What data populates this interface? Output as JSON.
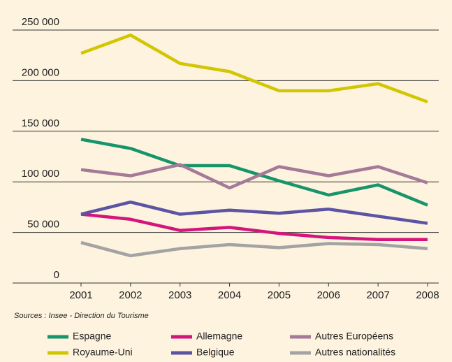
{
  "chart_data": {
    "type": "line",
    "source": "Sources : Insee - Direction du Tourisme",
    "categories": [
      "2001",
      "2002",
      "2003",
      "2004",
      "2005",
      "2006",
      "2007",
      "2008"
    ],
    "series": [
      {
        "name": "Espagne",
        "color": "#17956a",
        "values": [
          142000,
          133000,
          116000,
          116000,
          101000,
          87000,
          97000,
          77000
        ]
      },
      {
        "name": "Allemagne",
        "color": "#d4167c",
        "values": [
          68000,
          63000,
          52000,
          55000,
          49000,
          45000,
          43000,
          43000
        ]
      },
      {
        "name": "Autres Européens",
        "color": "#a57a98",
        "values": [
          112000,
          106000,
          117000,
          94000,
          115000,
          106000,
          115000,
          99000
        ]
      },
      {
        "name": "Royaume-Uni",
        "color": "#d2c600",
        "values": [
          227000,
          245000,
          217000,
          209000,
          190000,
          190000,
          197000,
          179000
        ]
      },
      {
        "name": "Belgique",
        "color": "#5b54a5",
        "values": [
          68000,
          80000,
          68000,
          72000,
          69000,
          73000,
          66000,
          59000
        ]
      },
      {
        "name": "Autres nationalités",
        "color": "#a3a3a3",
        "values": [
          40000,
          27000,
          34000,
          38000,
          35000,
          39000,
          38000,
          34000
        ]
      }
    ],
    "ylim": [
      0,
      250000
    ],
    "yticks": [
      0,
      {
        "value": 50000,
        "label": "50 000"
      },
      {
        "value": 100000,
        "label": "100 000"
      },
      {
        "value": 150000,
        "label": "150 000"
      },
      {
        "value": 200000,
        "label": "200 000"
      },
      {
        "value": 250000,
        "label": "250 000"
      }
    ],
    "grid": true
  }
}
